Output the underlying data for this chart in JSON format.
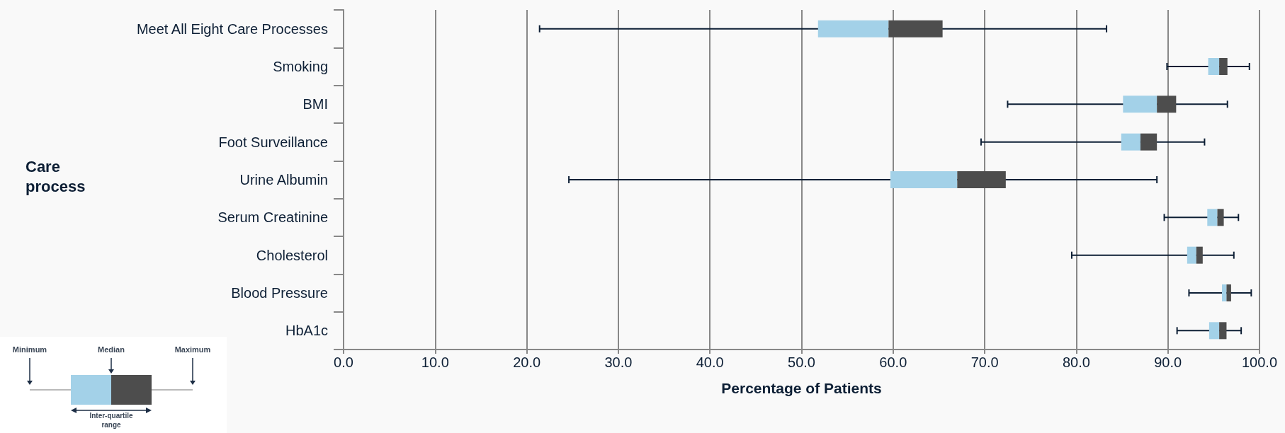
{
  "chart_data": {
    "type": "box",
    "orientation": "horizontal",
    "xlabel": "Percentage of Patients",
    "ylabel": "Care process",
    "categories": [
      "Meet All Eight Care Processes",
      "Smoking",
      "BMI",
      "Foot Surveillance",
      "Urine Albumin",
      "Serum Creatinine",
      "Cholesterol",
      "Blood Pressure",
      "HbA1c"
    ],
    "colors": [
      "#4d4d4d",
      "#4d4d4d",
      "#4d4d4d",
      "#4d4d4d",
      "#4d4d4d",
      "#4d4d4d",
      "#4d4d4d",
      "#4d4d4d",
      "#4d4d4d"
    ],
    "series": [
      {
        "color": "#a3d1e8",
        "boxes": [
          {
            "low": 21.4,
            "q1": 51.8,
            "median": 59.5,
            "q3": 65.4,
            "high": 83.3
          },
          {
            "low": 89.9,
            "q1": 94.4,
            "median": 95.6,
            "q3": 96.5,
            "high": 98.9
          },
          {
            "low": 72.5,
            "q1": 85.1,
            "median": 88.8,
            "q3": 90.9,
            "high": 96.5
          },
          {
            "low": 69.6,
            "q1": 84.9,
            "median": 87.0,
            "q3": 88.8,
            "high": 94.0
          },
          {
            "low": 24.6,
            "q1": 59.7,
            "median": 67.0,
            "q3": 72.3,
            "high": 88.8
          },
          {
            "low": 89.6,
            "q1": 94.3,
            "median": 95.4,
            "q3": 96.1,
            "high": 97.7
          },
          {
            "low": 79.5,
            "q1": 92.1,
            "median": 93.1,
            "q3": 93.8,
            "high": 97.2
          },
          {
            "low": 92.3,
            "q1": 95.9,
            "median": 96.4,
            "q3": 96.9,
            "high": 99.1
          },
          {
            "low": 91.0,
            "q1": 94.5,
            "median": 95.6,
            "q3": 96.4,
            "high": 98.0
          }
        ]
      }
    ],
    "xlim": [
      0,
      100
    ],
    "xticks": [
      {
        "value": 0,
        "label": "0.0"
      },
      {
        "value": 10,
        "label": "10.0"
      },
      {
        "value": 20,
        "label": "20.0"
      },
      {
        "value": 30,
        "label": "30.0"
      },
      {
        "value": 40,
        "label": "40.0"
      },
      {
        "value": 50,
        "label": "50.0"
      },
      {
        "value": 60,
        "label": "60.0"
      },
      {
        "value": 70,
        "label": "70.0"
      },
      {
        "value": 80,
        "label": "80.0"
      },
      {
        "value": 90,
        "label": "90.0"
      },
      {
        "value": 100,
        "label": "100.0"
      }
    ],
    "grid": "x",
    "annotations": [
      "Minimum",
      "Median",
      "Maximum",
      "Inter-quartile range"
    ]
  }
}
